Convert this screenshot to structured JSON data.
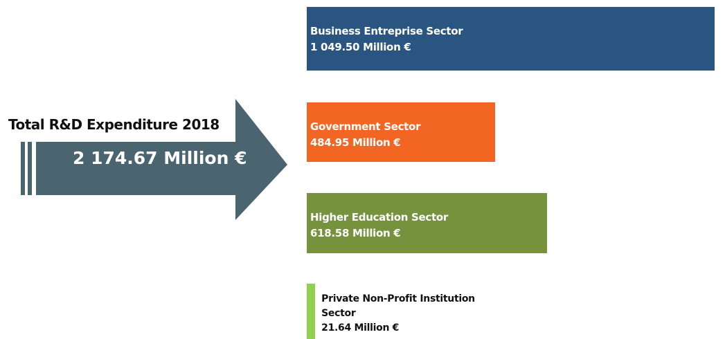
{
  "chart_data": {
    "type": "bar",
    "orientation": "horizontal",
    "total": {
      "title": "Total R&D Expenditure 2018",
      "value": 2174.67,
      "value_label": "2 174.67 Million €",
      "color": "#4a6470"
    },
    "categories": [
      "Business Entreprise Sector",
      "Government Sector",
      "Higher Education Sector",
      "Private Non-Profit Institution Sector"
    ],
    "values": [
      1049.5,
      484.95,
      618.58,
      21.64
    ],
    "value_labels": [
      "1 049.50 Million €",
      "484.95 Million €",
      "618.58 Million €",
      "21.64 Million €"
    ],
    "colors": [
      "#2a5580",
      "#f26522",
      "#76923c",
      "#92d050"
    ]
  }
}
